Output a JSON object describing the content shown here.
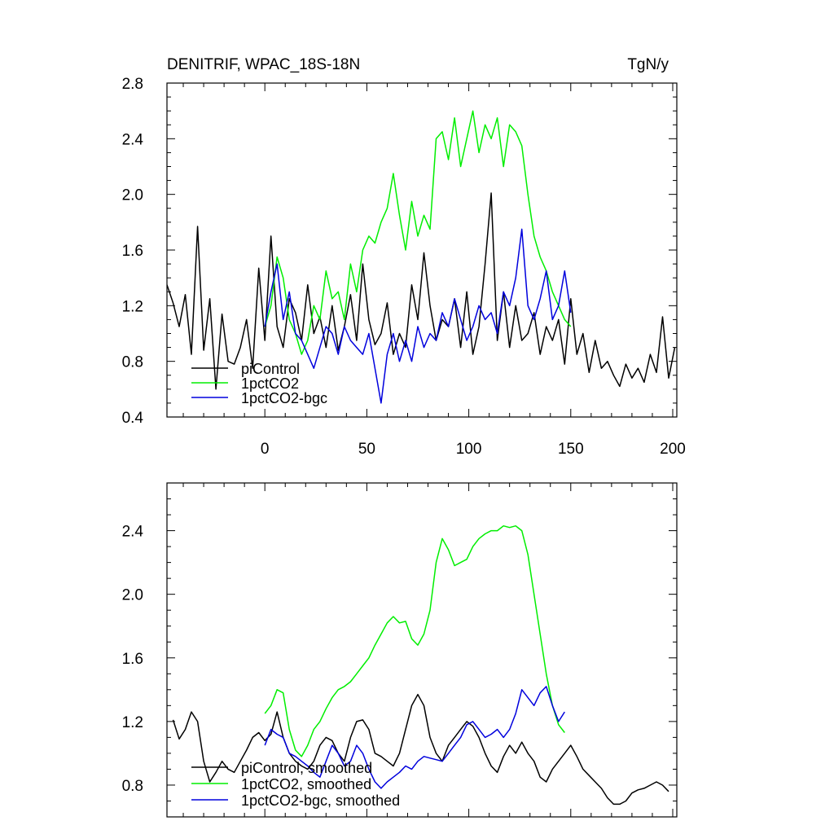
{
  "chart_data": [
    {
      "type": "line",
      "title": "DENITRIF, WPAC_18S-18N",
      "units": "TgN/y",
      "xlim": [
        -48,
        202
      ],
      "ylim": [
        0.4,
        2.8
      ],
      "x_ticks": [
        0,
        50,
        100,
        150,
        200
      ],
      "y_ticks": [
        0.4,
        0.8,
        1.2,
        1.6,
        2.0,
        2.4,
        2.8
      ],
      "x_tick_labels": [
        "0",
        "50",
        "100",
        "150",
        "200"
      ],
      "y_tick_labels": [
        "0.4",
        "0.8",
        "1.2",
        "1.6",
        "2.0",
        "2.4",
        "2.8"
      ],
      "legend_position": "bottom-left",
      "series": [
        {
          "name": "piControl",
          "color": "#000000",
          "x": [
            -48,
            -45,
            -42,
            -39,
            -36,
            -33,
            -30,
            -27,
            -24,
            -21,
            -18,
            -15,
            -12,
            -9,
            -6,
            -3,
            0,
            3,
            6,
            9,
            12,
            15,
            18,
            21,
            24,
            27,
            30,
            33,
            36,
            39,
            42,
            45,
            48,
            51,
            54,
            57,
            60,
            63,
            66,
            69,
            72,
            75,
            78,
            81,
            84,
            87,
            90,
            93,
            96,
            99,
            102,
            105,
            108,
            111,
            114,
            117,
            120,
            123,
            126,
            129,
            132,
            135,
            138,
            141,
            144,
            147,
            150,
            153,
            156,
            159,
            162,
            165,
            168,
            171,
            174,
            177,
            180,
            183,
            186,
            189,
            192,
            195,
            198,
            201
          ],
          "values": [
            1.35,
            1.22,
            1.05,
            1.28,
            0.85,
            1.77,
            0.88,
            1.25,
            0.6,
            1.14,
            0.8,
            0.78,
            0.9,
            1.1,
            0.75,
            1.47,
            0.95,
            1.7,
            1.05,
            0.9,
            1.25,
            1.15,
            0.95,
            1.35,
            1.0,
            1.12,
            0.9,
            1.2,
            0.88,
            1.05,
            1.28,
            0.95,
            1.5,
            1.1,
            0.92,
            1.0,
            1.22,
            0.85,
            1.0,
            0.9,
            1.35,
            1.1,
            1.58,
            1.2,
            0.95,
            1.1,
            1.05,
            1.25,
            0.9,
            1.3,
            0.85,
            1.05,
            1.5,
            2.01,
            0.95,
            1.3,
            0.9,
            1.2,
            0.95,
            1.0,
            1.15,
            0.85,
            1.05,
            0.95,
            1.1,
            0.78,
            1.25,
            0.85,
            1.0,
            0.72,
            0.95,
            0.75,
            0.8,
            0.7,
            0.62,
            0.78,
            0.68,
            0.75,
            0.65,
            0.85,
            0.72,
            1.12,
            0.68,
            0.9
          ]
        },
        {
          "name": "1pctCO2",
          "color": "#00ee00",
          "x": [
            0,
            3,
            6,
            9,
            12,
            15,
            18,
            21,
            24,
            27,
            30,
            33,
            36,
            39,
            42,
            45,
            48,
            51,
            54,
            57,
            60,
            63,
            66,
            69,
            72,
            75,
            78,
            81,
            84,
            87,
            90,
            93,
            96,
            99,
            102,
            105,
            108,
            111,
            114,
            117,
            120,
            123,
            126,
            129,
            132,
            135,
            138,
            141,
            144,
            147,
            150
          ],
          "values": [
            1.05,
            1.2,
            1.55,
            1.4,
            1.1,
            1.0,
            0.85,
            0.95,
            1.2,
            1.1,
            1.45,
            1.25,
            1.3,
            1.1,
            1.5,
            1.3,
            1.6,
            1.7,
            1.65,
            1.8,
            1.9,
            2.15,
            1.85,
            1.6,
            1.95,
            1.7,
            1.85,
            1.75,
            2.4,
            2.45,
            2.25,
            2.55,
            2.2,
            2.4,
            2.6,
            2.3,
            2.5,
            2.4,
            2.55,
            2.2,
            2.5,
            2.45,
            2.35,
            2.0,
            1.7,
            1.55,
            1.45,
            1.3,
            1.2,
            1.1,
            1.05
          ]
        },
        {
          "name": "1pctCO2-bgc",
          "color": "#0000dd",
          "x": [
            0,
            3,
            6,
            9,
            12,
            15,
            18,
            21,
            24,
            27,
            30,
            33,
            36,
            39,
            42,
            45,
            48,
            51,
            54,
            57,
            60,
            63,
            66,
            69,
            72,
            75,
            78,
            81,
            84,
            87,
            90,
            93,
            96,
            99,
            102,
            105,
            108,
            111,
            114,
            117,
            120,
            123,
            126,
            129,
            132,
            135,
            138,
            141,
            144,
            147,
            150
          ],
          "values": [
            1.05,
            1.3,
            1.5,
            1.1,
            1.3,
            1.0,
            0.95,
            0.85,
            0.75,
            0.9,
            1.05,
            1.0,
            0.85,
            1.05,
            0.95,
            0.9,
            0.85,
            1.0,
            0.75,
            0.5,
            0.85,
            1.0,
            0.8,
            0.95,
            0.8,
            1.05,
            0.9,
            1.0,
            0.95,
            1.15,
            1.05,
            1.25,
            1.1,
            0.95,
            1.05,
            1.2,
            1.1,
            1.15,
            1.0,
            1.3,
            1.2,
            1.4,
            1.75,
            1.2,
            1.1,
            1.25,
            1.45,
            1.1,
            1.2,
            1.45,
            1.15
          ]
        }
      ]
    },
    {
      "type": "line",
      "title": "",
      "xlim": [
        -48,
        202
      ],
      "ylim": [
        0.6,
        2.7
      ],
      "y_ticks": [
        0.8,
        1.2,
        1.6,
        2.0,
        2.4
      ],
      "y_tick_labels": [
        "0.8",
        "1.2",
        "1.6",
        "2.0",
        "2.4"
      ],
      "legend_position": "bottom-left",
      "series": [
        {
          "name": "piControl, smoothed",
          "color": "#000000",
          "x": [
            -45,
            -42,
            -39,
            -36,
            -33,
            -30,
            -27,
            -24,
            -21,
            -18,
            -15,
            -12,
            -9,
            -6,
            -3,
            0,
            3,
            6,
            9,
            12,
            15,
            18,
            21,
            24,
            27,
            30,
            33,
            36,
            39,
            42,
            45,
            48,
            51,
            54,
            57,
            60,
            63,
            66,
            69,
            72,
            75,
            78,
            81,
            84,
            87,
            90,
            93,
            96,
            99,
            102,
            105,
            108,
            111,
            114,
            117,
            120,
            123,
            126,
            129,
            132,
            135,
            138,
            141,
            144,
            147,
            150,
            153,
            156,
            159,
            162,
            165,
            168,
            171,
            174,
            177,
            180,
            183,
            186,
            189,
            192,
            195,
            198
          ],
          "values": [
            1.21,
            1.09,
            1.15,
            1.26,
            1.2,
            0.95,
            0.82,
            0.88,
            0.95,
            0.9,
            0.88,
            0.95,
            1.02,
            1.1,
            1.13,
            1.08,
            1.12,
            1.26,
            1.1,
            1.0,
            0.95,
            0.92,
            0.9,
            0.95,
            1.05,
            1.1,
            1.08,
            1.0,
            0.95,
            1.1,
            1.2,
            1.21,
            1.15,
            1.0,
            0.98,
            0.95,
            0.92,
            1.0,
            1.15,
            1.3,
            1.37,
            1.3,
            1.1,
            1.0,
            0.95,
            1.05,
            1.1,
            1.15,
            1.2,
            1.17,
            1.1,
            1.0,
            0.92,
            0.88,
            0.98,
            1.05,
            1.0,
            1.07,
            1.0,
            0.95,
            0.85,
            0.82,
            0.9,
            0.95,
            1.0,
            1.05,
            0.98,
            0.9,
            0.86,
            0.82,
            0.78,
            0.72,
            0.68,
            0.68,
            0.7,
            0.75,
            0.77,
            0.78,
            0.8,
            0.82,
            0.8,
            0.76
          ]
        },
        {
          "name": "1pctCO2, smoothed",
          "color": "#00ee00",
          "x": [
            0,
            3,
            6,
            9,
            12,
            15,
            18,
            21,
            24,
            27,
            30,
            33,
            36,
            39,
            42,
            45,
            48,
            51,
            54,
            57,
            60,
            63,
            66,
            69,
            72,
            75,
            78,
            81,
            84,
            87,
            90,
            93,
            96,
            99,
            102,
            105,
            108,
            111,
            114,
            117,
            120,
            123,
            126,
            129,
            132,
            135,
            138,
            141,
            144,
            147
          ],
          "values": [
            1.25,
            1.3,
            1.4,
            1.38,
            1.15,
            1.02,
            0.98,
            1.05,
            1.15,
            1.2,
            1.28,
            1.35,
            1.4,
            1.42,
            1.45,
            1.5,
            1.55,
            1.6,
            1.68,
            1.75,
            1.82,
            1.86,
            1.82,
            1.83,
            1.72,
            1.68,
            1.75,
            1.9,
            2.2,
            2.35,
            2.28,
            2.18,
            2.2,
            2.22,
            2.3,
            2.35,
            2.38,
            2.4,
            2.4,
            2.43,
            2.42,
            2.43,
            2.4,
            2.25,
            2.0,
            1.75,
            1.5,
            1.3,
            1.18,
            1.13
          ]
        },
        {
          "name": "1pctCO2-bgc, smoothed",
          "color": "#0000dd",
          "x": [
            0,
            3,
            6,
            9,
            12,
            15,
            18,
            21,
            24,
            27,
            30,
            33,
            36,
            39,
            42,
            45,
            48,
            51,
            54,
            57,
            60,
            63,
            66,
            69,
            72,
            75,
            78,
            81,
            84,
            87,
            90,
            93,
            96,
            99,
            102,
            105,
            108,
            111,
            114,
            117,
            120,
            123,
            126,
            129,
            132,
            135,
            138,
            141,
            144,
            147
          ],
          "values": [
            1.05,
            1.15,
            1.12,
            1.1,
            1.0,
            0.98,
            0.95,
            0.92,
            0.88,
            0.85,
            0.95,
            1.05,
            1.0,
            0.92,
            0.95,
            1.05,
            1.0,
            0.9,
            0.82,
            0.78,
            0.82,
            0.85,
            0.88,
            0.92,
            0.9,
            0.95,
            0.98,
            0.97,
            0.96,
            0.95,
            1.0,
            1.05,
            1.1,
            1.18,
            1.2,
            1.15,
            1.1,
            1.12,
            1.15,
            1.1,
            1.15,
            1.25,
            1.4,
            1.35,
            1.3,
            1.38,
            1.42,
            1.3,
            1.2,
            1.26
          ]
        }
      ]
    }
  ]
}
